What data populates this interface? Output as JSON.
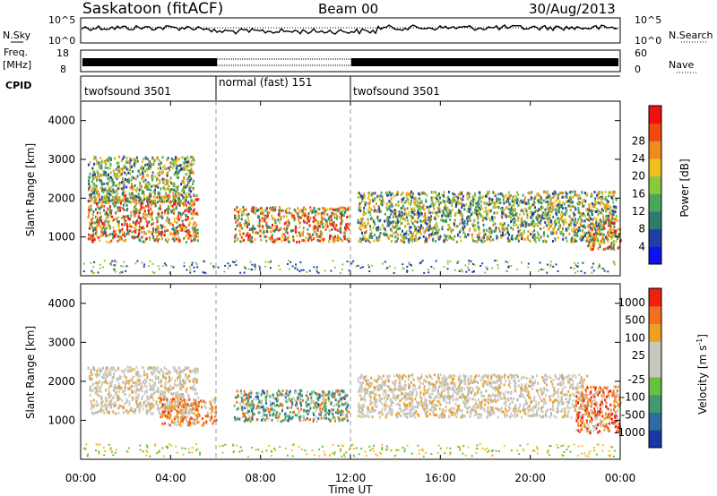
{
  "header": {
    "station": "Saskatoon (fitACF)",
    "beam": "Beam 00",
    "date": "30/Aug/2013"
  },
  "noise_panel": {
    "left_label": "N.Sky",
    "right_label": "N.Search",
    "left_ticks": [
      "10^5",
      "10^0"
    ],
    "right_ticks": [
      "10^5",
      "10^0"
    ]
  },
  "freq_panel": {
    "left_label_1": "Freq.",
    "left_label_2": "[MHz]",
    "right_label": "Nave",
    "left_ticks": [
      "18",
      "8"
    ],
    "right_ticks": [
      "60",
      "0"
    ]
  },
  "cpid": {
    "label": "CPID",
    "segments": [
      {
        "name": "twofsound 3501",
        "start_h": 0,
        "end_h": 6
      },
      {
        "name": "normal (fast) 151",
        "start_h": 6,
        "end_h": 12
      },
      {
        "name": "twofsound 3501",
        "start_h": 12,
        "end_h": 24
      }
    ]
  },
  "time_axis": {
    "label": "Time UT",
    "ticks": [
      "00:00",
      "04:00",
      "08:00",
      "12:00",
      "16:00",
      "20:00",
      "00:00"
    ]
  },
  "chart_data": [
    {
      "type": "heatmap",
      "title": "Power",
      "ylabel": "Slant Range [km]",
      "xlabel": "Time UT",
      "xlim_hours": [
        0,
        24
      ],
      "ylim_km": [
        0,
        4500
      ],
      "y_ticks": [
        1000,
        2000,
        3000,
        4000
      ],
      "colorbar": {
        "label": "Power [dB]",
        "ticks": [
          4,
          8,
          12,
          16,
          20,
          24,
          28
        ],
        "colors": [
          "#1010f0",
          "#1e3fa8",
          "#2f7a6a",
          "#4aa65a",
          "#8cc83c",
          "#f0c020",
          "#f08a20",
          "#f04a10",
          "#f01010"
        ]
      },
      "echo_regions": [
        {
          "t0": 0.3,
          "t1": 5.2,
          "r0": 900,
          "r1": 2100,
          "level": "high"
        },
        {
          "t0": 0.3,
          "t1": 5.0,
          "r0": 1900,
          "r1": 3100,
          "level": "mid"
        },
        {
          "t0": 6.8,
          "t1": 11.9,
          "r0": 900,
          "r1": 1800,
          "level": "high"
        },
        {
          "t0": 12.3,
          "t1": 23.8,
          "r0": 900,
          "r1": 2200,
          "level": "mid"
        },
        {
          "t0": 22.5,
          "t1": 24.0,
          "r0": 700,
          "r1": 1500,
          "level": "high"
        }
      ]
    },
    {
      "type": "heatmap",
      "title": "Velocity",
      "ylabel": "Slant Range [km]",
      "xlabel": "Time UT",
      "xlim_hours": [
        0,
        24
      ],
      "ylim_km": [
        0,
        4500
      ],
      "y_ticks": [
        1000,
        2000,
        3000,
        4000
      ],
      "colorbar": {
        "label": "Velocity [m s^-1]",
        "ticks": [
          1000,
          500,
          100,
          25,
          -25,
          -100,
          -500,
          -1000
        ],
        "colors": [
          "#1838a8",
          "#2f6aa0",
          "#3f9a70",
          "#68c040",
          "#c8c8c0",
          "#c8c8c0",
          "#f0a020",
          "#f07020",
          "#f02010"
        ]
      },
      "echo_regions": [
        {
          "t0": 0.3,
          "t1": 5.2,
          "r0": 1200,
          "r1": 2400,
          "level": "gray"
        },
        {
          "t0": 3.5,
          "t1": 6.0,
          "r0": 900,
          "r1": 1600,
          "level": "orange"
        },
        {
          "t0": 6.8,
          "t1": 11.9,
          "r0": 1000,
          "r1": 1800,
          "level": "green"
        },
        {
          "t0": 12.3,
          "t1": 22.5,
          "r0": 1100,
          "r1": 2200,
          "level": "gray"
        },
        {
          "t0": 22.0,
          "t1": 24.0,
          "r0": 700,
          "r1": 1900,
          "level": "red"
        }
      ]
    }
  ]
}
